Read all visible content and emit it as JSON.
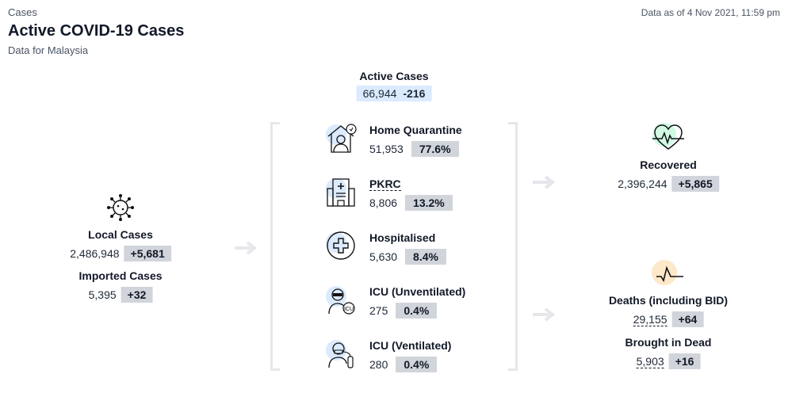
{
  "header": {
    "section": "Cases",
    "title": "Active COVID-19 Cases",
    "subtitle": "Data for Malaysia",
    "data_as_of": "Data as of 4 Nov 2021, 11:59 pm"
  },
  "active": {
    "label": "Active Cases",
    "value": "66,944",
    "change": "-216",
    "bg": "#dbeafe"
  },
  "left": {
    "local": {
      "label": "Local Cases",
      "value": "2,486,948",
      "change": "+5,681"
    },
    "imported": {
      "label": "Imported Cases",
      "value": "5,395",
      "change": "+32"
    },
    "icon": "virus-icon"
  },
  "middle": [
    {
      "label": "Home Quarantine",
      "value": "51,953",
      "pct": "77.6%",
      "icon": "home-quarantine-icon"
    },
    {
      "label": "PKRC",
      "value": "8,806",
      "pct": "13.2%",
      "icon": "hospital-building-icon"
    },
    {
      "label": "Hospitalised",
      "value": "5,630",
      "pct": "8.4%",
      "icon": "medical-cross-icon"
    },
    {
      "label": "ICU (Unventilated)",
      "value": "275",
      "pct": "0.4%",
      "icon": "icu-patient-icon"
    },
    {
      "label": "ICU (Ventilated)",
      "value": "280",
      "pct": "0.4%",
      "icon": "ventilated-patient-icon"
    }
  ],
  "right": {
    "recovered": {
      "label": "Recovered",
      "value": "2,396,244",
      "change": "+5,865",
      "icon": "heart-pulse-icon",
      "icon_bg": "#d1fae5"
    },
    "deaths": {
      "label": "Deaths (including BID)",
      "value": "29,155",
      "change": "+64",
      "icon": "pulse-line-icon",
      "icon_bg": "#fde8c8"
    },
    "bid": {
      "label": "Brought in Dead",
      "value": "5,903",
      "change": "+16"
    }
  }
}
